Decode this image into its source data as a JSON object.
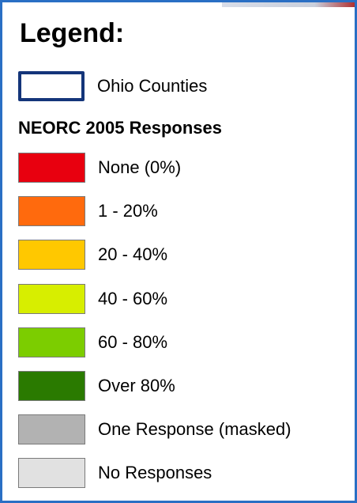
{
  "legend": {
    "title": "Legend:",
    "boundary": {
      "label": "Ohio Counties",
      "border_color": "#14357a"
    },
    "subtitle": "NEORC 2005 Responses",
    "items": [
      {
        "label": "None (0%)",
        "color": "#e8000f"
      },
      {
        "label": "1 - 20%",
        "color": "#ff6a0d"
      },
      {
        "label": "20 - 40%",
        "color": "#ffc800"
      },
      {
        "label": "40 - 60%",
        "color": "#d7ee00"
      },
      {
        "label": "60 - 80%",
        "color": "#7ccd00"
      },
      {
        "label": "Over 80%",
        "color": "#2a7a00"
      },
      {
        "label": "One Response (masked)",
        "color": "#b2b2b2"
      },
      {
        "label": "No Responses",
        "color": "#e1e1e1"
      }
    ]
  },
  "frame": {
    "border_color": "#2a6fc4"
  }
}
